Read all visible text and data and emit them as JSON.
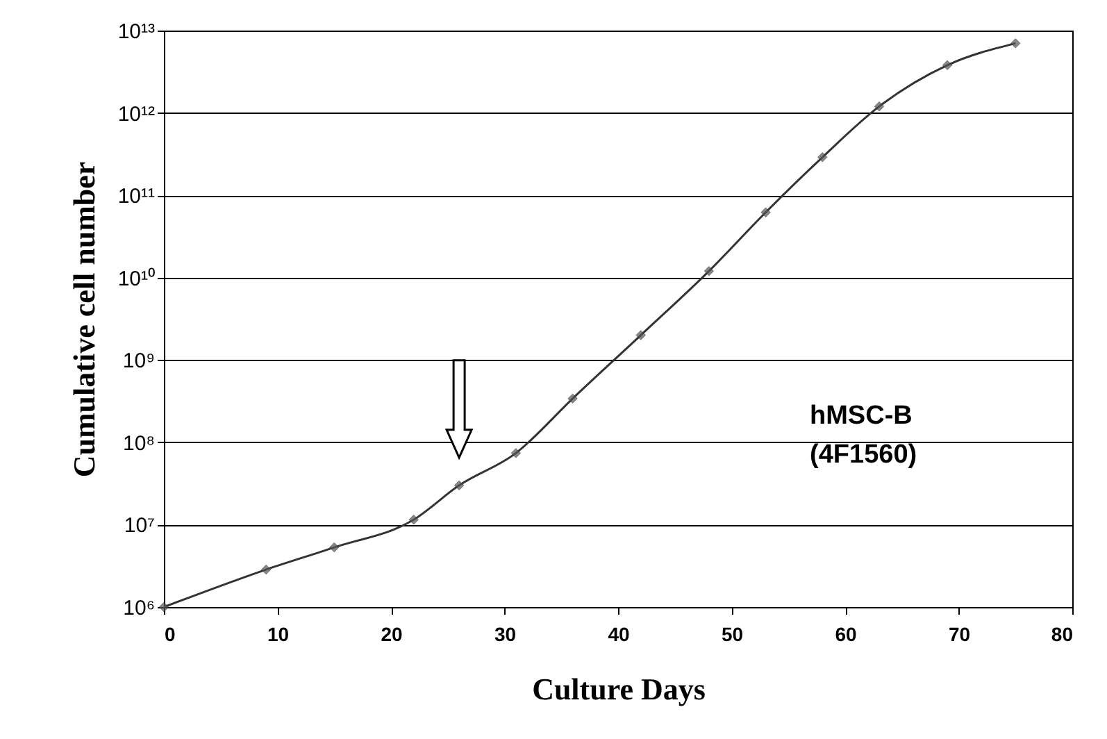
{
  "chart_data": {
    "type": "line",
    "xlabel": "Culture Days",
    "ylabel": "Cumulative cell number",
    "x": [
      0,
      9,
      15,
      22,
      26,
      31,
      36,
      42,
      48,
      53,
      58,
      63,
      69,
      75
    ],
    "series": [
      {
        "color": "#333333",
        "values": [
          1000000,
          2850000,
          5300000,
          11500000,
          30000000,
          74000000,
          340000000,
          2000000000,
          12000000000,
          62000000000,
          290000000000,
          1200000000000,
          3800000000000,
          7000000000000
        ]
      }
    ],
    "xlim": [
      0,
      80
    ],
    "xticks": [
      0,
      10,
      20,
      30,
      40,
      50,
      60,
      70,
      80
    ],
    "ylim": [
      1000000,
      10000000000000
    ],
    "yticks": [
      {
        "value": 1000000,
        "label": "10⁶"
      },
      {
        "value": 10000000,
        "label": "10⁷"
      },
      {
        "value": 100000000,
        "label": "10⁸"
      },
      {
        "value": 1000000000,
        "label": "10⁹"
      },
      {
        "value": 10000000000,
        "label": "10¹⁰"
      },
      {
        "value": 100000000000,
        "label": "10¹¹"
      },
      {
        "value": 1000000000000,
        "label": "10¹²"
      },
      {
        "value": 10000000000000,
        "label": "10¹³"
      }
    ],
    "log": true,
    "grid": "y",
    "marker": "diamond",
    "line_style": "solid",
    "annotations": [
      "hMSC-B\n(4F1560)"
    ]
  }
}
